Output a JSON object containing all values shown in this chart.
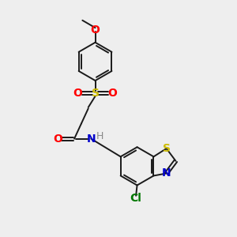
{
  "background_color": "#eeeeee",
  "bond_color": "#1a1a1a",
  "bond_width": 1.4,
  "fig_width": 3.0,
  "fig_height": 3.0,
  "dpi": 100,
  "colors": {
    "O": "#ff0000",
    "S": "#ccbb00",
    "N": "#0000cc",
    "H": "#888888",
    "Cl": "#007700",
    "C": "#1a1a1a"
  }
}
